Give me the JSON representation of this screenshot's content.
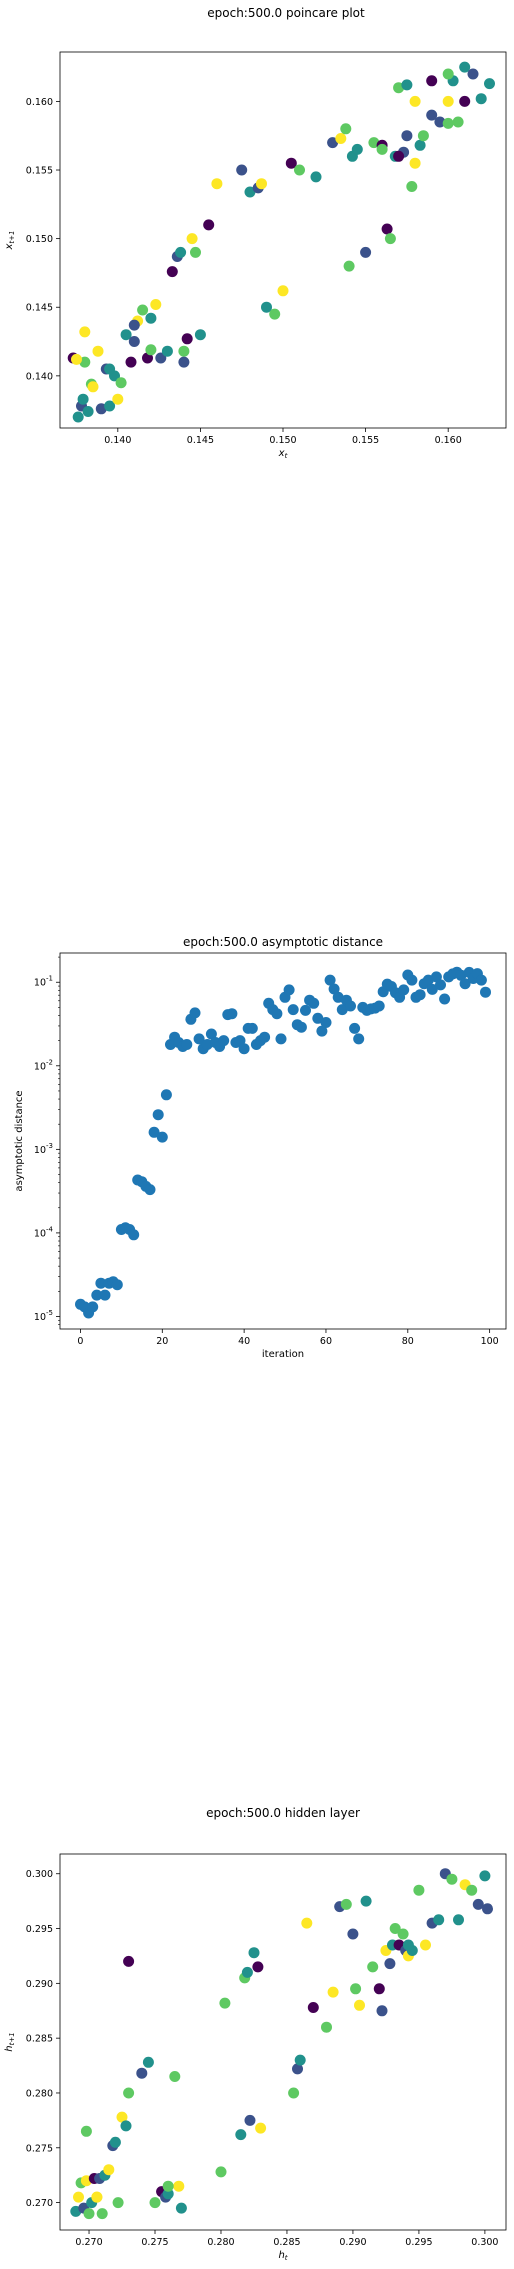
{
  "chart_data": [
    {
      "type": "scatter",
      "title": "epoch:500.0 poincare plot",
      "xlabel": "x_t",
      "ylabel": "x_{t+1}",
      "xlim": [
        0.1365,
        0.1635
      ],
      "ylim": [
        0.1362,
        0.1636
      ],
      "xticks": [
        0.14,
        0.145,
        0.15,
        0.155,
        0.16
      ],
      "xtick_labels": [
        "0.140",
        "0.145",
        "0.150",
        "0.155",
        "0.160"
      ],
      "yticks": [
        0.14,
        0.145,
        0.15,
        0.155,
        0.16
      ],
      "ytick_labels": [
        "0.140",
        "0.145",
        "0.150",
        "0.155",
        "0.160"
      ],
      "grid": false,
      "colormap": [
        "#440154",
        "#3b528b",
        "#21918c",
        "#5ec962",
        "#fde725"
      ],
      "x": [
        0.1373,
        0.1376,
        0.1378,
        0.138,
        0.1382,
        0.1375,
        0.1379,
        0.1384,
        0.1388,
        0.139,
        0.1393,
        0.1395,
        0.1398,
        0.14,
        0.1402,
        0.1405,
        0.1408,
        0.141,
        0.1412,
        0.1415,
        0.1418,
        0.142,
        0.1423,
        0.1426,
        0.143,
        0.1433,
        0.1436,
        0.1438,
        0.144,
        0.1442,
        0.1445,
        0.1447,
        0.145,
        0.1455,
        0.146,
        0.1475,
        0.148,
        0.1485,
        0.1487,
        0.149,
        0.1495,
        0.15,
        0.1505,
        0.151,
        0.152,
        0.153,
        0.1535,
        0.1538,
        0.154,
        0.1542,
        0.1545,
        0.155,
        0.1555,
        0.156,
        0.1563,
        0.1565,
        0.1568,
        0.157,
        0.1573,
        0.1575,
        0.1578,
        0.158,
        0.1583,
        0.1585,
        0.159,
        0.1595,
        0.16,
        0.1603,
        0.1606,
        0.161,
        0.1615,
        0.162,
        0.1625,
        0.138,
        0.1395,
        0.1385,
        0.141,
        0.142,
        0.144,
        0.156,
        0.157,
        0.158,
        0.16,
        0.161,
        0.1575,
        0.159,
        0.16
      ],
      "y": [
        0.1413,
        0.137,
        0.1378,
        0.141,
        0.1374,
        0.1412,
        0.1383,
        0.1394,
        0.1418,
        0.1376,
        0.1405,
        0.1378,
        0.14,
        0.1383,
        0.1395,
        0.143,
        0.141,
        0.1425,
        0.144,
        0.1448,
        0.1413,
        0.1442,
        0.1452,
        0.1413,
        0.1418,
        0.1476,
        0.1487,
        0.149,
        0.1418,
        0.1427,
        0.15,
        0.149,
        0.143,
        0.151,
        0.154,
        0.155,
        0.1534,
        0.1537,
        0.154,
        0.145,
        0.1445,
        0.1462,
        0.1555,
        0.155,
        0.1545,
        0.157,
        0.1573,
        0.158,
        0.148,
        0.156,
        0.1565,
        0.149,
        0.157,
        0.1568,
        0.1507,
        0.15,
        0.156,
        0.161,
        0.1563,
        0.1575,
        0.1538,
        0.16,
        0.1568,
        0.1575,
        0.1615,
        0.1585,
        0.16,
        0.1615,
        0.1585,
        0.1625,
        0.162,
        0.1602,
        0.1613,
        0.1432,
        0.1405,
        0.1392,
        0.1437,
        0.1419,
        0.141,
        0.1565,
        0.156,
        0.1555,
        0.1584,
        0.16,
        0.1612,
        0.159,
        0.162
      ],
      "c": [
        0,
        2,
        1,
        3,
        2,
        4,
        2,
        3,
        4,
        1,
        1,
        2,
        2,
        4,
        3,
        2,
        0,
        1,
        4,
        3,
        0,
        2,
        4,
        1,
        2,
        0,
        1,
        2,
        3,
        0,
        4,
        3,
        2,
        0,
        4,
        1,
        2,
        1,
        4,
        2,
        3,
        4,
        0,
        3,
        2,
        1,
        4,
        3,
        3,
        2,
        2,
        1,
        3,
        0,
        0,
        3,
        2,
        3,
        1,
        1,
        3,
        4,
        2,
        3,
        0,
        1,
        4,
        2,
        3,
        2,
        1,
        2,
        2,
        4,
        2,
        4,
        1,
        3,
        1,
        3,
        0,
        4,
        3,
        0,
        2,
        1,
        3
      ]
    },
    {
      "type": "scatter",
      "title": "epoch:500.0 asymptotic distance",
      "xlabel": "iteration",
      "ylabel": "asymptotic distance",
      "xlim": [
        -5,
        104
      ],
      "ylim_log10": [
        -5.15,
        -0.65
      ],
      "yscale": "log",
      "xticks": [
        0,
        20,
        40,
        60,
        80,
        100
      ],
      "xtick_labels": [
        "0",
        "20",
        "40",
        "60",
        "80",
        "100"
      ],
      "yticks_log10": [
        -5,
        -4,
        -3,
        -2,
        -1
      ],
      "ytick_labels": [
        "10^-5",
        "10^-4",
        "10^-3",
        "10^-2",
        "10^-1"
      ],
      "grid": false,
      "color": "#1f77b4",
      "x": [
        0,
        1,
        2,
        3,
        4,
        5,
        6,
        7,
        8,
        9,
        10,
        11,
        12,
        13,
        14,
        15,
        16,
        17,
        18,
        19,
        20,
        21,
        22,
        23,
        24,
        25,
        26,
        27,
        28,
        29,
        30,
        31,
        32,
        33,
        34,
        35,
        36,
        37,
        38,
        39,
        40,
        41,
        42,
        43,
        44,
        45,
        46,
        47,
        48,
        49,
        50,
        51,
        52,
        53,
        54,
        55,
        56,
        57,
        58,
        59,
        60,
        61,
        62,
        63,
        64,
        65,
        66,
        67,
        68,
        69,
        70,
        71,
        72,
        73,
        74,
        75,
        76,
        77,
        78,
        79,
        80,
        81,
        82,
        83,
        84,
        85,
        86,
        87,
        88,
        89,
        90,
        91,
        92,
        93,
        94,
        95,
        96,
        97,
        98,
        99
      ],
      "y": [
        1.4e-05,
        1.3e-05,
        1.1e-05,
        1.3e-05,
        1.8e-05,
        2.5e-05,
        1.8e-05,
        2.5e-05,
        2.6e-05,
        2.4e-05,
        0.00011,
        0.000115,
        0.00011,
        9.5e-05,
        0.00043,
        0.00041,
        0.00036,
        0.00033,
        0.0016,
        0.0026,
        0.0014,
        0.0045,
        0.018,
        0.022,
        0.019,
        0.017,
        0.018,
        0.036,
        0.043,
        0.021,
        0.016,
        0.018,
        0.024,
        0.019,
        0.017,
        0.02,
        0.041,
        0.042,
        0.019,
        0.02,
        0.016,
        0.028,
        0.028,
        0.018,
        0.02,
        0.022,
        0.056,
        0.047,
        0.042,
        0.021,
        0.066,
        0.081,
        0.047,
        0.031,
        0.029,
        0.046,
        0.061,
        0.056,
        0.037,
        0.026,
        0.033,
        0.106,
        0.083,
        0.066,
        0.047,
        0.061,
        0.052,
        0.028,
        0.021,
        0.05,
        0.046,
        0.048,
        0.049,
        0.052,
        0.077,
        0.095,
        0.089,
        0.075,
        0.066,
        0.081,
        0.122,
        0.106,
        0.066,
        0.071,
        0.096,
        0.106,
        0.082,
        0.116,
        0.093,
        0.063,
        0.116,
        0.126,
        0.132,
        0.121,
        0.096,
        0.131,
        0.111,
        0.127,
        0.106,
        0.076
      ]
    },
    {
      "type": "scatter",
      "title": "epoch:500.0 hidden layer",
      "xlabel": "h_t",
      "ylabel": "h_{t+1}",
      "xlim": [
        0.2678,
        0.3016
      ],
      "ylim": [
        0.2675,
        0.3018
      ],
      "xticks": [
        0.27,
        0.275,
        0.28,
        0.285,
        0.29,
        0.295,
        0.3
      ],
      "xtick_labels": [
        "0.270",
        "0.275",
        "0.280",
        "0.285",
        "0.290",
        "0.295",
        "0.300"
      ],
      "yticks": [
        0.27,
        0.275,
        0.28,
        0.285,
        0.29,
        0.295,
        0.3
      ],
      "ytick_labels": [
        "0.270",
        "0.275",
        "0.280",
        "0.285",
        "0.290",
        "0.295",
        "0.300"
      ],
      "grid": false,
      "colormap": [
        "#440154",
        "#3b528b",
        "#21918c",
        "#5ec962",
        "#fde725"
      ],
      "x": [
        0.269,
        0.2692,
        0.2694,
        0.2696,
        0.2698,
        0.27,
        0.2702,
        0.2704,
        0.2706,
        0.2708,
        0.271,
        0.2712,
        0.2715,
        0.2718,
        0.272,
        0.2722,
        0.2725,
        0.2728,
        0.273,
        0.274,
        0.2745,
        0.275,
        0.2755,
        0.2758,
        0.276,
        0.2765,
        0.2768,
        0.277,
        0.28,
        0.2803,
        0.2815,
        0.2818,
        0.282,
        0.2822,
        0.2825,
        0.2828,
        0.283,
        0.2855,
        0.2858,
        0.286,
        0.2865,
        0.287,
        0.288,
        0.2885,
        0.289,
        0.2895,
        0.29,
        0.2905,
        0.291,
        0.2915,
        0.292,
        0.2925,
        0.2928,
        0.293,
        0.2932,
        0.2935,
        0.2938,
        0.294,
        0.2942,
        0.2945,
        0.295,
        0.2955,
        0.296,
        0.2965,
        0.297,
        0.2975,
        0.298,
        0.2985,
        0.299,
        0.2995,
        0.3,
        0.3002,
        0.2698,
        0.2706,
        0.273,
        0.276,
        0.2902,
        0.2922,
        0.2942
      ],
      "y": [
        0.2692,
        0.2705,
        0.2718,
        0.2695,
        0.272,
        0.269,
        0.27,
        0.2722,
        0.2705,
        0.2722,
        0.269,
        0.2725,
        0.273,
        0.2752,
        0.2755,
        0.27,
        0.2778,
        0.277,
        0.28,
        0.2818,
        0.2828,
        0.27,
        0.271,
        0.2705,
        0.2708,
        0.2815,
        0.2715,
        0.2695,
        0.2728,
        0.2882,
        0.2762,
        0.2905,
        0.291,
        0.2775,
        0.2928,
        0.2915,
        0.2768,
        0.28,
        0.2822,
        0.283,
        0.2955,
        0.2878,
        0.286,
        0.2892,
        0.297,
        0.2972,
        0.2945,
        0.288,
        0.2975,
        0.2915,
        0.2895,
        0.293,
        0.2918,
        0.2935,
        0.295,
        0.2935,
        0.2945,
        0.293,
        0.2925,
        0.293,
        0.2985,
        0.2935,
        0.2955,
        0.2958,
        0.3,
        0.2995,
        0.2958,
        0.299,
        0.2985,
        0.2972,
        0.2998,
        0.2968,
        0.2765,
        0.2705,
        0.292,
        0.2715,
        0.2895,
        0.2875,
        0.2935
      ],
      "c": [
        2,
        4,
        3,
        1,
        4,
        3,
        2,
        0,
        4,
        1,
        3,
        2,
        4,
        1,
        2,
        3,
        4,
        2,
        3,
        1,
        2,
        3,
        0,
        1,
        2,
        3,
        4,
        2,
        3,
        3,
        2,
        3,
        2,
        1,
        2,
        0,
        4,
        3,
        1,
        2,
        4,
        0,
        3,
        4,
        1,
        3,
        1,
        4,
        2,
        3,
        0,
        4,
        1,
        2,
        3,
        0,
        3,
        1,
        4,
        2,
        3,
        4,
        1,
        2,
        1,
        3,
        2,
        4,
        3,
        1,
        2,
        1,
        3,
        4,
        0,
        3,
        3,
        1,
        2
      ]
    }
  ]
}
